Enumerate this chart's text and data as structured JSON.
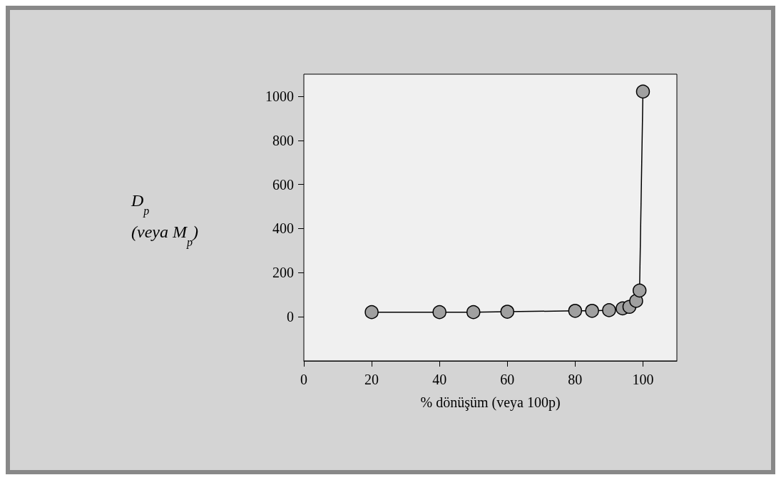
{
  "chart_data": {
    "type": "line",
    "xlabel": "% dönüşüm (veya 100p)",
    "ylabel": "D$_{p}$\n(veya M$_{p}$)",
    "series": [
      {
        "color": "#a0a0a0",
        "x": [
          20,
          40,
          50,
          60,
          80,
          85,
          90,
          94,
          96,
          98,
          99,
          100
        ],
        "values": [
          21,
          21,
          21,
          23,
          27,
          27,
          30,
          38,
          45,
          72,
          119,
          1021
        ]
      }
    ],
    "xlim": [
      0,
      110
    ],
    "xticks": [
      0,
      20,
      40,
      60,
      80,
      100
    ],
    "ylim": [
      -200,
      1100
    ],
    "yticks": [
      0,
      200,
      400,
      600,
      800,
      1000
    ],
    "marker": "circle",
    "line_style": "solid",
    "grid": false
  }
}
